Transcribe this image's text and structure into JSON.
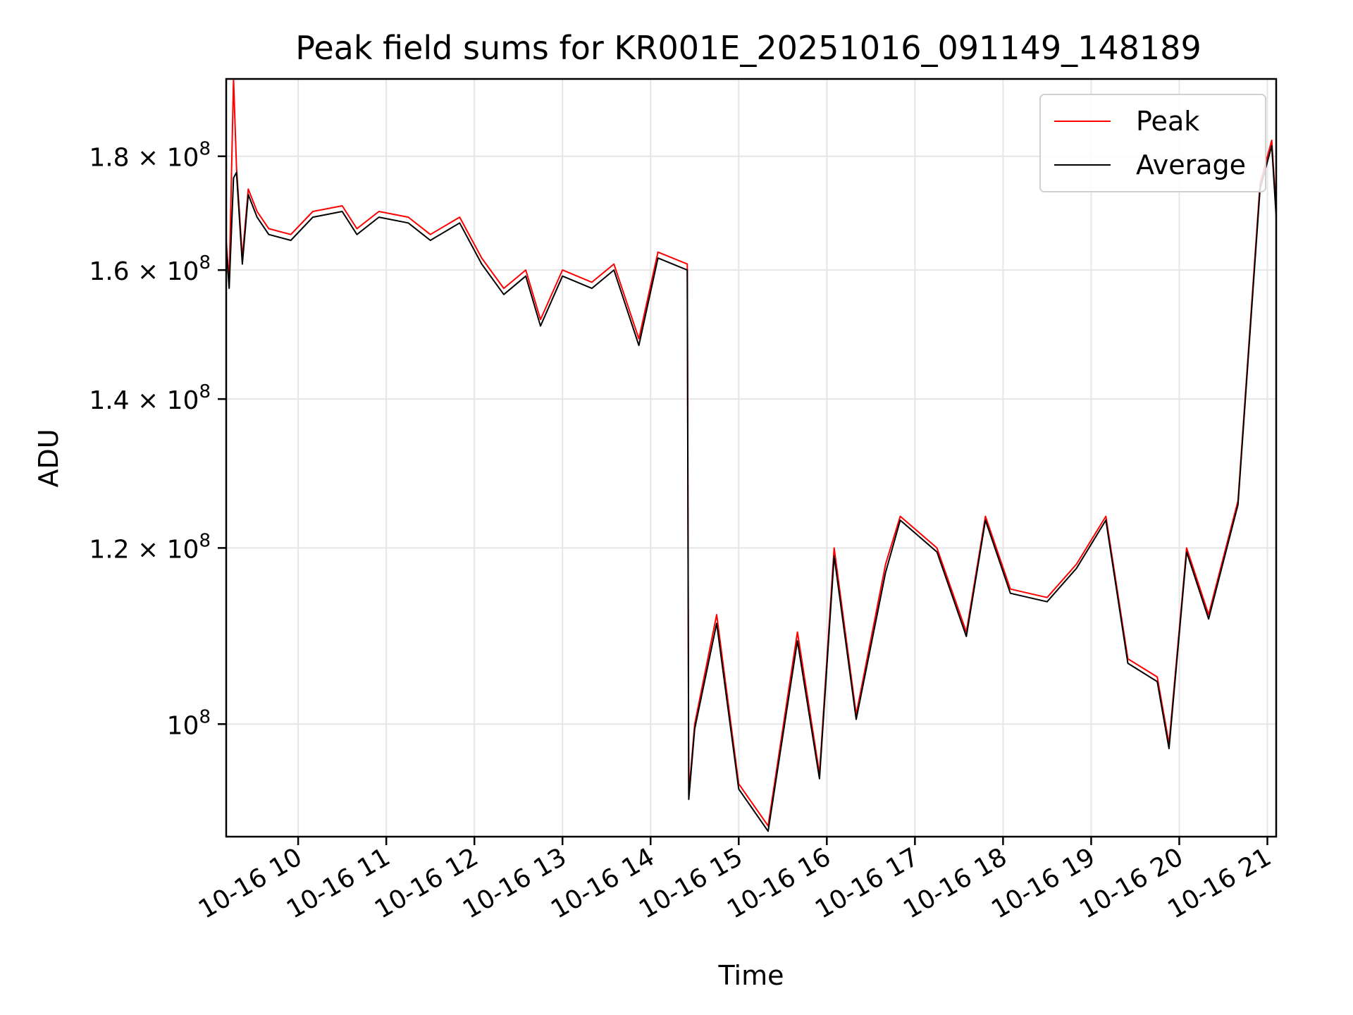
{
  "chart_data": {
    "type": "line",
    "title": "Peak field sums for KR001E_20251016_091149_148189",
    "xlabel": "Time",
    "ylabel": "ADU",
    "yscale": "log",
    "grid": true,
    "legend_position": "top-right",
    "xlim": [
      "2025-10-16 09:11",
      "2025-10-16 21:06"
    ],
    "ylim": [
      89000000,
      195000000
    ],
    "x_ticks": [
      {
        "value": "2025-10-16 10:00",
        "label": "10-16 10"
      },
      {
        "value": "2025-10-16 11:00",
        "label": "10-16 11"
      },
      {
        "value": "2025-10-16 12:00",
        "label": "10-16 12"
      },
      {
        "value": "2025-10-16 13:00",
        "label": "10-16 13"
      },
      {
        "value": "2025-10-16 14:00",
        "label": "10-16 14"
      },
      {
        "value": "2025-10-16 15:00",
        "label": "10-16 15"
      },
      {
        "value": "2025-10-16 16:00",
        "label": "10-16 16"
      },
      {
        "value": "2025-10-16 17:00",
        "label": "10-16 17"
      },
      {
        "value": "2025-10-16 18:00",
        "label": "10-16 18"
      },
      {
        "value": "2025-10-16 19:00",
        "label": "10-16 19"
      },
      {
        "value": "2025-10-16 20:00",
        "label": "10-16 20"
      },
      {
        "value": "2025-10-16 21:00",
        "label": "10-16 21"
      }
    ],
    "y_ticks": [
      {
        "value": 100000000,
        "mantissa": "",
        "base": "10",
        "exp": "8"
      },
      {
        "value": 120000000,
        "mantissa": "1.2 × ",
        "base": "10",
        "exp": "8"
      },
      {
        "value": 140000000,
        "mantissa": "1.4 × ",
        "base": "10",
        "exp": "8"
      },
      {
        "value": 160000000,
        "mantissa": "1.6 × ",
        "base": "10",
        "exp": "8"
      },
      {
        "value": 180000000,
        "mantissa": "1.8 × ",
        "base": "10",
        "exp": "8"
      }
    ],
    "series": [
      {
        "name": "Peak",
        "color": "#ff0000",
        "points": [
          [
            "2025-10-16 09:11",
            165000000
          ],
          [
            "2025-10-16 09:13",
            158000000
          ],
          [
            "2025-10-16 09:16",
            195000000
          ],
          [
            "2025-10-16 09:18",
            178000000
          ],
          [
            "2025-10-16 09:22",
            162000000
          ],
          [
            "2025-10-16 09:26",
            174000000
          ],
          [
            "2025-10-16 09:32",
            170000000
          ],
          [
            "2025-10-16 09:40",
            167000000
          ],
          [
            "2025-10-16 09:55",
            166000000
          ],
          [
            "2025-10-16 10:10",
            170000000
          ],
          [
            "2025-10-16 10:30",
            171000000
          ],
          [
            "2025-10-16 10:40",
            167000000
          ],
          [
            "2025-10-16 10:55",
            170000000
          ],
          [
            "2025-10-16 11:15",
            169000000
          ],
          [
            "2025-10-16 11:30",
            166000000
          ],
          [
            "2025-10-16 11:50",
            169000000
          ],
          [
            "2025-10-16 12:05",
            162000000
          ],
          [
            "2025-10-16 12:20",
            157000000
          ],
          [
            "2025-10-16 12:35",
            160000000
          ],
          [
            "2025-10-16 12:45",
            152000000
          ],
          [
            "2025-10-16 13:00",
            160000000
          ],
          [
            "2025-10-16 13:20",
            158000000
          ],
          [
            "2025-10-16 13:35",
            161000000
          ],
          [
            "2025-10-16 13:52",
            149000000
          ],
          [
            "2025-10-16 14:05",
            163000000
          ],
          [
            "2025-10-16 14:25",
            161000000
          ],
          [
            "2025-10-16 14:26",
            93000000
          ],
          [
            "2025-10-16 14:30",
            100000000
          ],
          [
            "2025-10-16 14:45",
            112000000
          ],
          [
            "2025-10-16 15:00",
            94000000
          ],
          [
            "2025-10-16 15:20",
            90000000
          ],
          [
            "2025-10-16 15:40",
            110000000
          ],
          [
            "2025-10-16 15:55",
            95000000
          ],
          [
            "2025-10-16 16:05",
            120000000
          ],
          [
            "2025-10-16 16:20",
            101000000
          ],
          [
            "2025-10-16 16:40",
            118000000
          ],
          [
            "2025-10-16 16:50",
            124000000
          ],
          [
            "2025-10-16 17:15",
            120000000
          ],
          [
            "2025-10-16 17:35",
            110000000
          ],
          [
            "2025-10-16 17:48",
            124000000
          ],
          [
            "2025-10-16 18:05",
            115000000
          ],
          [
            "2025-10-16 18:30",
            114000000
          ],
          [
            "2025-10-16 18:50",
            118000000
          ],
          [
            "2025-10-16 19:10",
            124000000
          ],
          [
            "2025-10-16 19:25",
            107000000
          ],
          [
            "2025-10-16 19:45",
            105000000
          ],
          [
            "2025-10-16 19:53",
            98000000
          ],
          [
            "2025-10-16 20:05",
            120000000
          ],
          [
            "2025-10-16 20:20",
            112000000
          ],
          [
            "2025-10-16 20:40",
            126000000
          ],
          [
            "2025-10-16 20:55",
            175000000
          ],
          [
            "2025-10-16 21:03",
            183000000
          ],
          [
            "2025-10-16 21:06",
            170000000
          ]
        ]
      },
      {
        "name": "Average",
        "color": "#000000",
        "points": [
          [
            "2025-10-16 09:11",
            164000000
          ],
          [
            "2025-10-16 09:13",
            157000000
          ],
          [
            "2025-10-16 09:16",
            176000000
          ],
          [
            "2025-10-16 09:18",
            177000000
          ],
          [
            "2025-10-16 09:22",
            161000000
          ],
          [
            "2025-10-16 09:26",
            173000000
          ],
          [
            "2025-10-16 09:32",
            169000000
          ],
          [
            "2025-10-16 09:40",
            166000000
          ],
          [
            "2025-10-16 09:55",
            165000000
          ],
          [
            "2025-10-16 10:10",
            169000000
          ],
          [
            "2025-10-16 10:30",
            170000000
          ],
          [
            "2025-10-16 10:40",
            166000000
          ],
          [
            "2025-10-16 10:55",
            169000000
          ],
          [
            "2025-10-16 11:15",
            168000000
          ],
          [
            "2025-10-16 11:30",
            165000000
          ],
          [
            "2025-10-16 11:50",
            168000000
          ],
          [
            "2025-10-16 12:05",
            161000000
          ],
          [
            "2025-10-16 12:20",
            156000000
          ],
          [
            "2025-10-16 12:35",
            159000000
          ],
          [
            "2025-10-16 12:45",
            151000000
          ],
          [
            "2025-10-16 13:00",
            159000000
          ],
          [
            "2025-10-16 13:20",
            157000000
          ],
          [
            "2025-10-16 13:35",
            160000000
          ],
          [
            "2025-10-16 13:52",
            148000000
          ],
          [
            "2025-10-16 14:05",
            162000000
          ],
          [
            "2025-10-16 14:25",
            160000000
          ],
          [
            "2025-10-16 14:26",
            92500000
          ],
          [
            "2025-10-16 14:30",
            99500000
          ],
          [
            "2025-10-16 14:45",
            111000000
          ],
          [
            "2025-10-16 15:00",
            93500000
          ],
          [
            "2025-10-16 15:20",
            89500000
          ],
          [
            "2025-10-16 15:40",
            109000000
          ],
          [
            "2025-10-16 15:55",
            94500000
          ],
          [
            "2025-10-16 16:05",
            119000000
          ],
          [
            "2025-10-16 16:20",
            100500000
          ],
          [
            "2025-10-16 16:40",
            117000000
          ],
          [
            "2025-10-16 16:50",
            123500000
          ],
          [
            "2025-10-16 17:15",
            119500000
          ],
          [
            "2025-10-16 17:35",
            109500000
          ],
          [
            "2025-10-16 17:48",
            123500000
          ],
          [
            "2025-10-16 18:05",
            114500000
          ],
          [
            "2025-10-16 18:30",
            113500000
          ],
          [
            "2025-10-16 18:50",
            117500000
          ],
          [
            "2025-10-16 19:10",
            123500000
          ],
          [
            "2025-10-16 19:25",
            106500000
          ],
          [
            "2025-10-16 19:45",
            104500000
          ],
          [
            "2025-10-16 19:53",
            97500000
          ],
          [
            "2025-10-16 20:05",
            119500000
          ],
          [
            "2025-10-16 20:20",
            111500000
          ],
          [
            "2025-10-16 20:40",
            125500000
          ],
          [
            "2025-10-16 20:55",
            174000000
          ],
          [
            "2025-10-16 21:03",
            182000000
          ],
          [
            "2025-10-16 21:06",
            169000000
          ]
        ]
      }
    ]
  }
}
